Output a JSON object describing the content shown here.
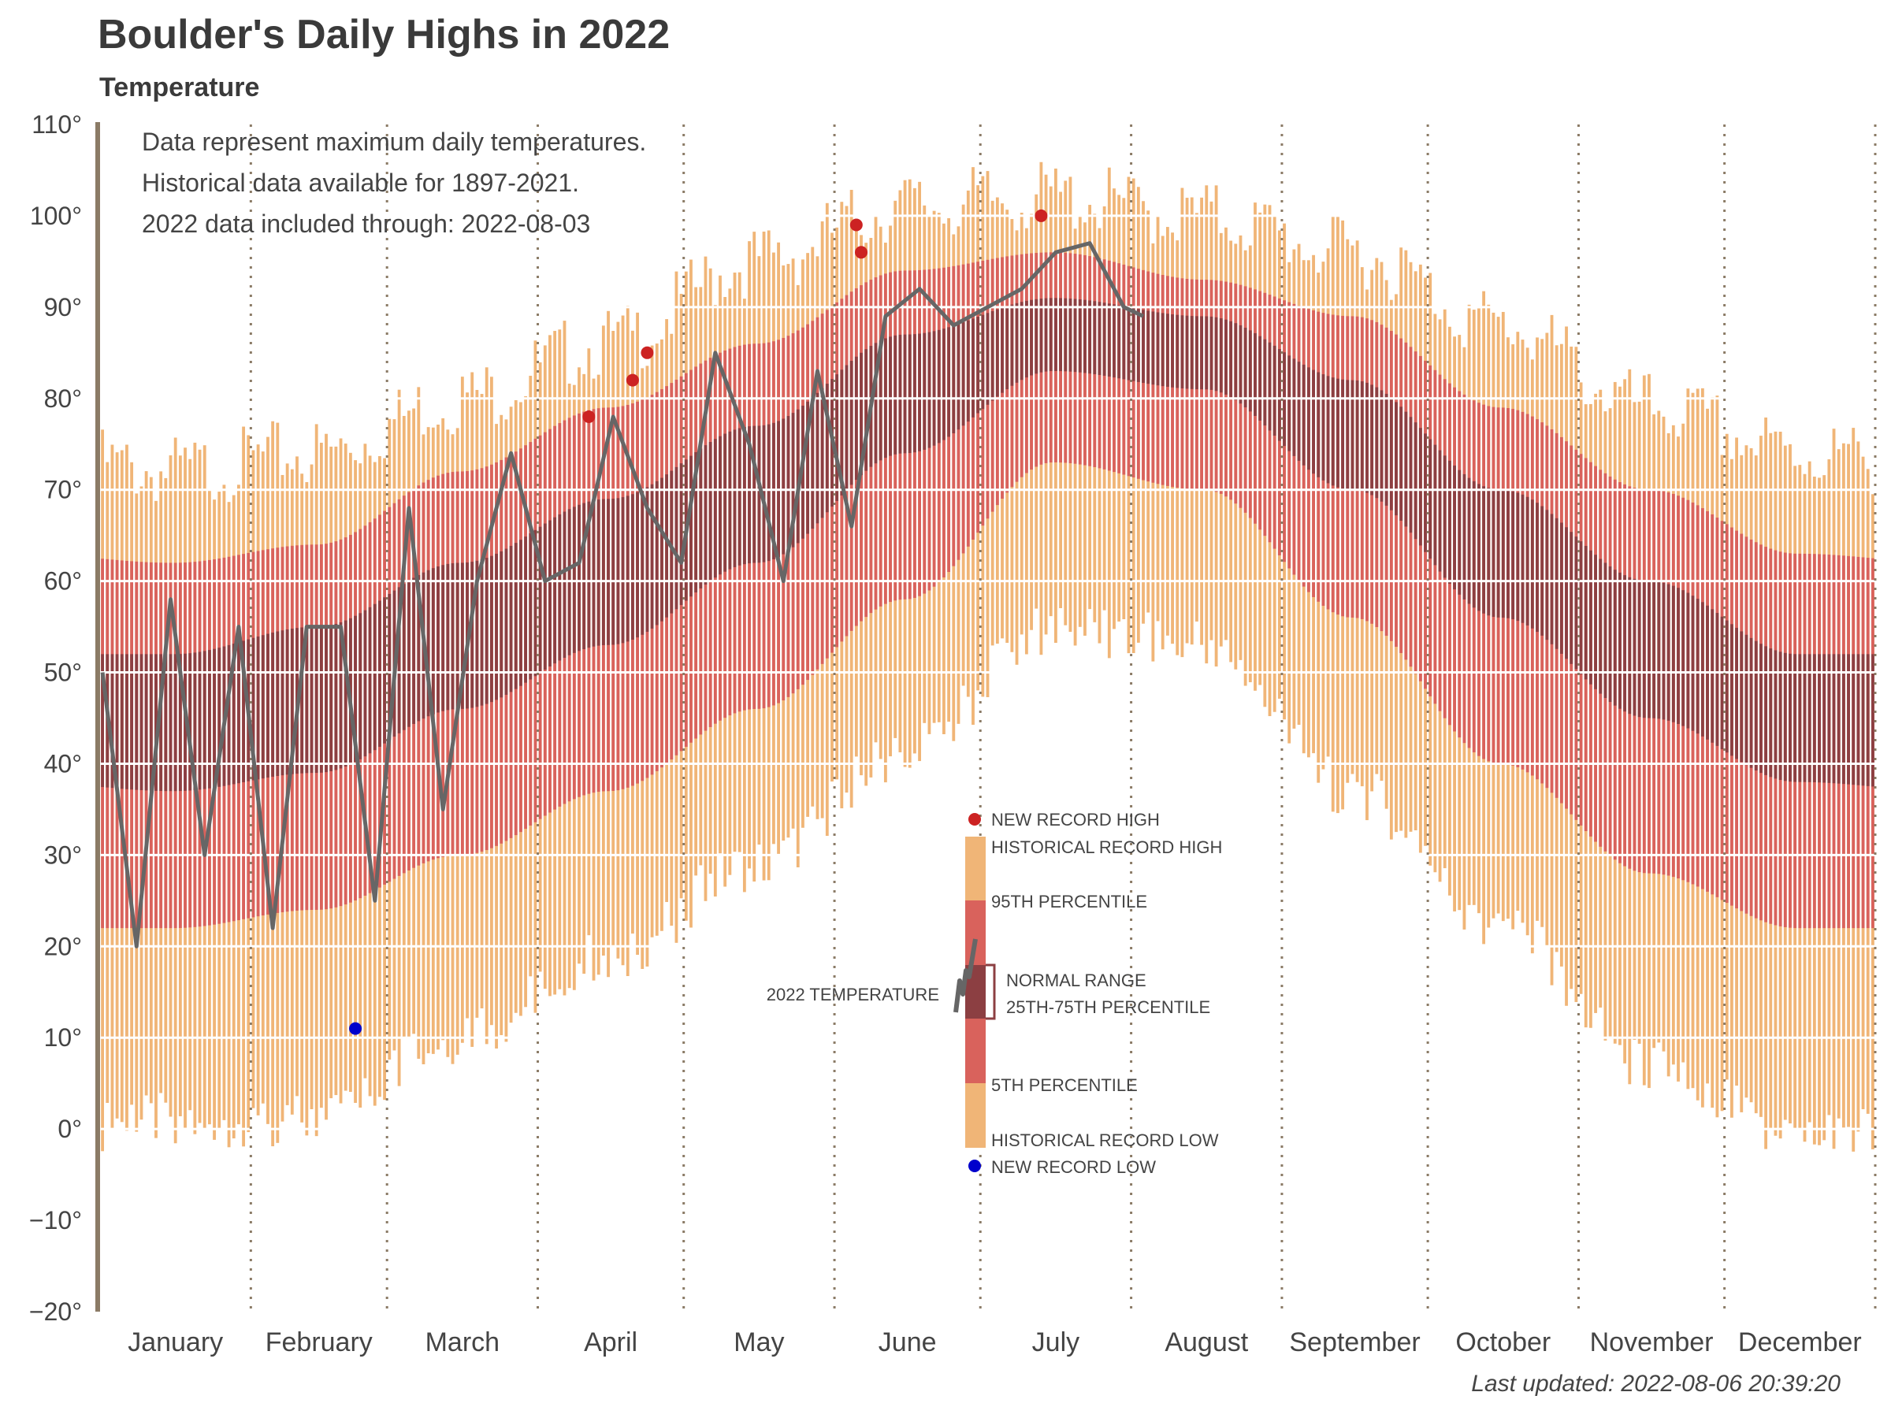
{
  "title": "Boulder's Daily Highs in 2022",
  "subtitle": "Temperature",
  "notes": [
    "Data represent maximum daily temperatures.",
    "Historical data available for 1897-2021.",
    "2022 data included through: 2022-08-03"
  ],
  "last_updated": "Last updated: 2022-08-06 20:39:20",
  "colors": {
    "record_band": "#F0B577",
    "percentile_band": "#D9625C",
    "normal_band": "#8C3F42",
    "line_2022": "#666666",
    "new_record_high": "#CC2222",
    "new_record_low": "#0000CC",
    "axis": "#8B7B66",
    "gridline": "#ffffff"
  },
  "legend": {
    "new_record_high": "NEW RECORD HIGH",
    "historical_record_high": "HISTORICAL RECORD HIGH",
    "p95": "95TH PERCENTILE",
    "normal_range": "NORMAL RANGE",
    "normal_range_sub": "25TH-75TH PERCENTILE",
    "p05": "5TH PERCENTILE",
    "historical_record_low": "HISTORICAL RECORD LOW",
    "new_record_low": "NEW RECORD LOW",
    "temp_2022": "2022 TEMPERATURE"
  },
  "chart_data": {
    "type": "bar",
    "title": "Boulder's Daily Highs in 2022",
    "subtitle": "Temperature",
    "ylim": [
      -20,
      110
    ],
    "y_ticks": [
      -20,
      -10,
      0,
      10,
      20,
      30,
      40,
      50,
      60,
      70,
      80,
      90,
      100,
      110
    ],
    "y_tick_labels": [
      "−20°",
      "−10°",
      "0°",
      "10°",
      "20°",
      "30°",
      "40°",
      "50°",
      "60°",
      "70°",
      "80°",
      "90°",
      "100°",
      "110°"
    ],
    "months": [
      "January",
      "February",
      "March",
      "April",
      "May",
      "June",
      "July",
      "August",
      "September",
      "October",
      "November",
      "December"
    ],
    "month_days": [
      31,
      28,
      31,
      30,
      31,
      30,
      31,
      31,
      30,
      31,
      30,
      31
    ],
    "grid": true,
    "seasonal_profile_by_month": {
      "historical_record_high": [
        72,
        74,
        80,
        86,
        95,
        101,
        102,
        100,
        96,
        88,
        79,
        74
      ],
      "p95": [
        62,
        64,
        72,
        79,
        86,
        94,
        96,
        93,
        89,
        79,
        70,
        63
      ],
      "p75": [
        52,
        55,
        62,
        69,
        77,
        87,
        91,
        89,
        82,
        70,
        60,
        52
      ],
      "p25": [
        37,
        39,
        46,
        53,
        62,
        74,
        83,
        81,
        70,
        56,
        45,
        38
      ],
      "p05": [
        22,
        24,
        30,
        37,
        46,
        58,
        73,
        70,
        56,
        40,
        28,
        22
      ],
      "historical_record_low": [
        4,
        4,
        13,
        22,
        32,
        44,
        58,
        56,
        40,
        25,
        10,
        2
      ]
    },
    "series_2022_weekly": {
      "name": "2022 TEMPERATURE",
      "day": [
        1,
        8,
        15,
        22,
        29,
        36,
        43,
        50,
        57,
        64,
        71,
        78,
        85,
        92,
        99,
        106,
        113,
        120,
        127,
        134,
        141,
        148,
        155,
        162,
        169,
        176,
        183,
        190,
        197,
        204,
        211,
        215
      ],
      "temp": [
        50,
        20,
        58,
        30,
        55,
        22,
        55,
        55,
        25,
        68,
        35,
        60,
        74,
        60,
        62,
        78,
        68,
        62,
        85,
        75,
        60,
        83,
        66,
        89,
        92,
        88,
        90,
        92,
        96,
        97,
        90,
        89
      ]
    },
    "new_record_highs": [
      {
        "day": 101,
        "temp": 78
      },
      {
        "day": 110,
        "temp": 82
      },
      {
        "day": 113,
        "temp": 85
      },
      {
        "day": 156,
        "temp": 99
      },
      {
        "day": 157,
        "temp": 96
      },
      {
        "day": 194,
        "temp": 100
      }
    ],
    "new_record_lows": [
      {
        "day": 53,
        "temp": 11
      }
    ]
  }
}
